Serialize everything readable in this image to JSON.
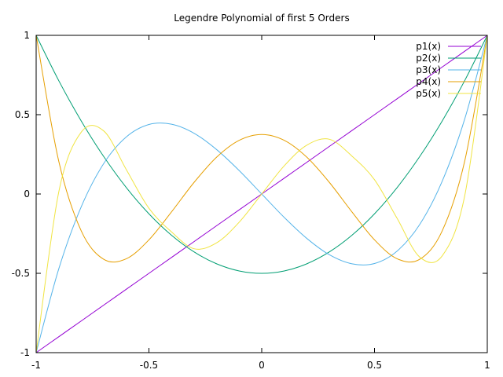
{
  "chart_data": {
    "type": "line",
    "title": "Legendre Polynomial of first 5 Orders",
    "xlabel": "",
    "ylabel": "",
    "xlim": [
      -1,
      1
    ],
    "ylim": [
      -1,
      1
    ],
    "x_ticks": [
      "-1",
      "-0.5",
      "0",
      "0.5",
      "1"
    ],
    "y_ticks": [
      "-1",
      "-0.5",
      "0",
      "0.5",
      "1"
    ],
    "grid": false,
    "legend_position": "top-right",
    "x": [
      -1,
      -0.9,
      -0.8,
      -0.7,
      -0.6,
      -0.5,
      -0.4,
      -0.3,
      -0.2,
      -0.1,
      0,
      0.1,
      0.2,
      0.3,
      0.4,
      0.5,
      0.6,
      0.7,
      0.8,
      0.9,
      1
    ],
    "series": [
      {
        "name": "p1(x)",
        "color": "#9400d3",
        "values": [
          -1,
          -0.9,
          -0.8,
          -0.7,
          -0.6,
          -0.5,
          -0.4,
          -0.3,
          -0.2,
          -0.1,
          0,
          0.1,
          0.2,
          0.3,
          0.4,
          0.5,
          0.6,
          0.7,
          0.8,
          0.9,
          1
        ]
      },
      {
        "name": "p2(x)",
        "color": "#009e73",
        "values": [
          1,
          0.715,
          0.46,
          0.235,
          0.04,
          -0.125,
          -0.26,
          -0.365,
          -0.44,
          -0.485,
          -0.5,
          -0.485,
          -0.44,
          -0.365,
          -0.26,
          -0.125,
          0.04,
          0.235,
          0.46,
          0.715,
          1
        ]
      },
      {
        "name": "p3(x)",
        "color": "#56b4e9",
        "values": [
          -1,
          -0.473,
          -0.08,
          0.193,
          0.36,
          0.438,
          0.44,
          0.383,
          0.28,
          0.148,
          0,
          -0.148,
          -0.28,
          -0.383,
          -0.44,
          -0.438,
          -0.36,
          -0.193,
          0.08,
          0.473,
          1
        ]
      },
      {
        "name": "p4(x)",
        "color": "#e69f00",
        "values": [
          1,
          0.208,
          -0.233,
          -0.412,
          -0.408,
          -0.289,
          -0.113,
          0.073,
          0.232,
          0.338,
          0.375,
          0.338,
          0.232,
          0.073,
          -0.113,
          -0.289,
          -0.408,
          -0.412,
          -0.233,
          0.208,
          1
        ]
      },
      {
        "name": "p5(x)",
        "color": "#f0e442",
        "values": [
          -1,
          0.011,
          0.39,
          0.397,
          0.153,
          -0.09,
          -0.239,
          -0.345,
          -0.308,
          -0.178,
          0,
          0.178,
          0.308,
          0.345,
          0.239,
          0.09,
          -0.153,
          -0.397,
          -0.39,
          -0.011,
          1
        ]
      }
    ]
  }
}
